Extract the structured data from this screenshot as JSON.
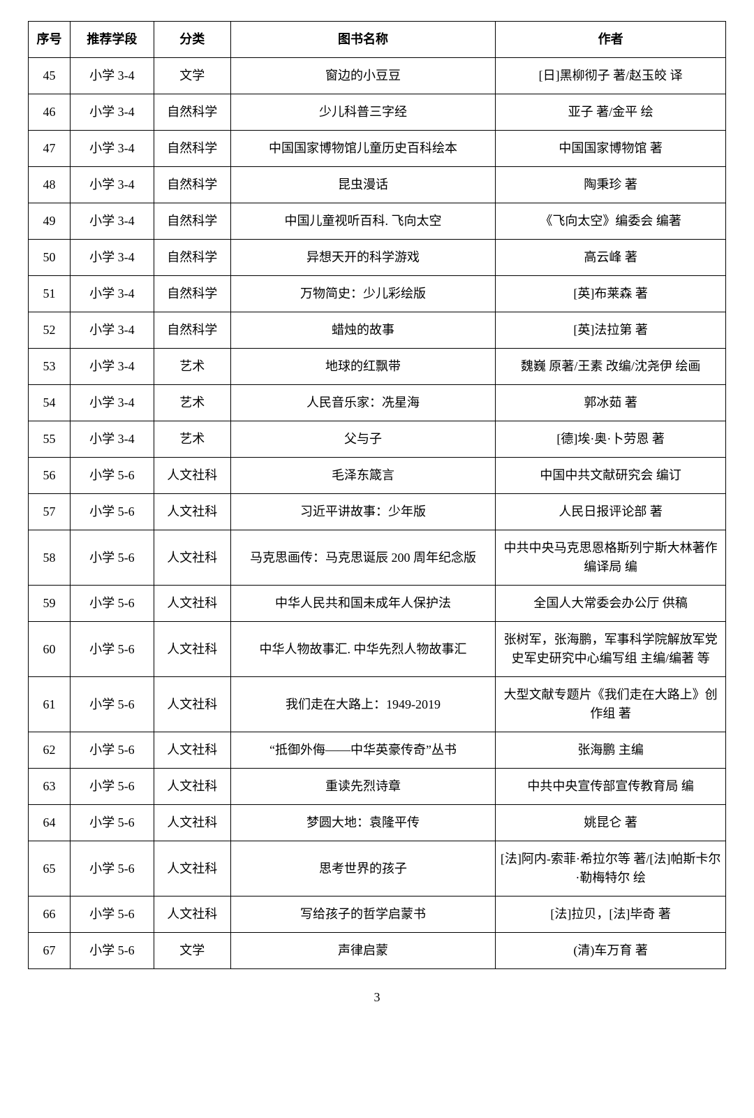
{
  "headers": {
    "seq": "序号",
    "grade": "推荐学段",
    "category": "分类",
    "title": "图书名称",
    "author": "作者"
  },
  "rows": [
    {
      "seq": "45",
      "grade": "小学 3-4",
      "category": "文学",
      "title": "窗边的小豆豆",
      "author": "[日]黑柳彻子 著/赵玉皎 译"
    },
    {
      "seq": "46",
      "grade": "小学 3-4",
      "category": "自然科学",
      "title": "少儿科普三字经",
      "author": "亚子 著/金平 绘"
    },
    {
      "seq": "47",
      "grade": "小学 3-4",
      "category": "自然科学",
      "title": "中国国家博物馆儿童历史百科绘本",
      "author": "中国国家博物馆 著"
    },
    {
      "seq": "48",
      "grade": "小学 3-4",
      "category": "自然科学",
      "title": "昆虫漫话",
      "author": "陶秉珍 著"
    },
    {
      "seq": "49",
      "grade": "小学 3-4",
      "category": "自然科学",
      "title": "中国儿童视听百科. 飞向太空",
      "author": "《飞向太空》编委会 编著"
    },
    {
      "seq": "50",
      "grade": "小学 3-4",
      "category": "自然科学",
      "title": "异想天开的科学游戏",
      "author": "高云峰 著"
    },
    {
      "seq": "51",
      "grade": "小学 3-4",
      "category": "自然科学",
      "title": "万物简史：少儿彩绘版",
      "author": "[英]布莱森 著"
    },
    {
      "seq": "52",
      "grade": "小学 3-4",
      "category": "自然科学",
      "title": "蜡烛的故事",
      "author": "[英]法拉第 著"
    },
    {
      "seq": "53",
      "grade": "小学 3-4",
      "category": "艺术",
      "title": "地球的红飘带",
      "author": "魏巍 原著/王素 改编/沈尧伊 绘画"
    },
    {
      "seq": "54",
      "grade": "小学 3-4",
      "category": "艺术",
      "title": "人民音乐家：冼星海",
      "author": "郭冰茹 著"
    },
    {
      "seq": "55",
      "grade": "小学 3-4",
      "category": "艺术",
      "title": "父与子",
      "author": "[德]埃·奥·卜劳恩 著"
    },
    {
      "seq": "56",
      "grade": "小学 5-6",
      "category": "人文社科",
      "title": "毛泽东箴言",
      "author": "中国中共文献研究会 编订"
    },
    {
      "seq": "57",
      "grade": "小学 5-6",
      "category": "人文社科",
      "title": "习近平讲故事：少年版",
      "author": "人民日报评论部 著"
    },
    {
      "seq": "58",
      "grade": "小学 5-6",
      "category": "人文社科",
      "title": "马克思画传：马克思诞辰 200 周年纪念版",
      "author": "中共中央马克思恩格斯列宁斯大林著作编译局 编"
    },
    {
      "seq": "59",
      "grade": "小学 5-6",
      "category": "人文社科",
      "title": "中华人民共和国未成年人保护法",
      "author": "全国人大常委会办公厅 供稿"
    },
    {
      "seq": "60",
      "grade": "小学 5-6",
      "category": "人文社科",
      "title": "中华人物故事汇. 中华先烈人物故事汇",
      "author": "张树军，张海鹏，军事科学院解放军党史军史研究中心编写组 主编/编著 等"
    },
    {
      "seq": "61",
      "grade": "小学 5-6",
      "category": "人文社科",
      "title": "我们走在大路上：1949-2019",
      "author": "大型文献专题片《我们走在大路上》创作组 著"
    },
    {
      "seq": "62",
      "grade": "小学 5-6",
      "category": "人文社科",
      "title": "“抵御外侮——中华英豪传奇”丛书",
      "author": "张海鹏 主编"
    },
    {
      "seq": "63",
      "grade": "小学 5-6",
      "category": "人文社科",
      "title": "重读先烈诗章",
      "author": "中共中央宣传部宣传教育局 编"
    },
    {
      "seq": "64",
      "grade": "小学 5-6",
      "category": "人文社科",
      "title": "梦圆大地：袁隆平传",
      "author": "姚昆仑 著"
    },
    {
      "seq": "65",
      "grade": "小学 5-6",
      "category": "人文社科",
      "title": "思考世界的孩子",
      "author": "[法]阿内-索菲·希拉尔等 著/[法]帕斯卡尔·勒梅特尔 绘"
    },
    {
      "seq": "66",
      "grade": "小学 5-6",
      "category": "人文社科",
      "title": "写给孩子的哲学启蒙书",
      "author": "[法]拉贝，[法]毕奇 著"
    },
    {
      "seq": "67",
      "grade": "小学 5-6",
      "category": "文学",
      "title": "声律启蒙",
      "author": "(清)车万育 著"
    }
  ],
  "pageNumber": "3"
}
